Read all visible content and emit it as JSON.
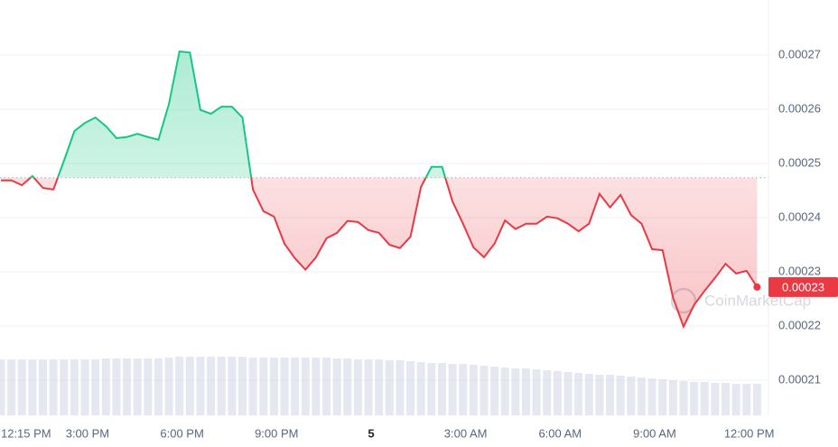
{
  "chart_data": {
    "type": "baseline-line",
    "x": [
      0,
      20,
      40,
      60,
      80,
      100,
      120,
      140,
      160,
      180,
      200,
      220,
      240,
      260,
      280,
      300,
      320,
      340,
      360,
      380,
      400,
      420,
      440,
      460,
      480,
      500,
      520,
      540,
      560,
      580,
      600,
      620,
      640,
      660,
      680,
      700,
      720,
      740,
      760,
      780,
      800,
      820,
      840,
      860,
      880,
      900,
      920,
      940,
      960,
      980,
      1000,
      1020,
      1040,
      1060,
      1080,
      1100,
      1120,
      1140,
      1160,
      1180,
      1200,
      1220,
      1240,
      1260,
      1280,
      1300,
      1320,
      1340,
      1360,
      1380,
      1400,
      1420,
      1440
    ],
    "series": [
      {
        "values": [
          0.0002469,
          0.0002469,
          0.000246,
          0.0002477,
          0.0002455,
          0.0002452,
          0.0002505,
          0.000256,
          0.0002575,
          0.0002585,
          0.0002569,
          0.0002547,
          0.0002549,
          0.0002555,
          0.0002549,
          0.0002544,
          0.000261,
          0.0002707,
          0.0002705,
          0.0002599,
          0.0002592,
          0.0002605,
          0.0002605,
          0.0002585,
          0.0002452,
          0.0002412,
          0.0002402,
          0.0002352,
          0.0002325,
          0.0002304,
          0.0002327,
          0.0002362,
          0.0002372,
          0.0002394,
          0.0002392,
          0.0002377,
          0.0002372,
          0.000235,
          0.0002344,
          0.0002365,
          0.0002457,
          0.0002494,
          0.0002494,
          0.000243,
          0.0002389,
          0.0002345,
          0.0002327,
          0.0002352,
          0.0002395,
          0.0002379,
          0.0002389,
          0.0002389,
          0.0002402,
          0.0002399,
          0.0002389,
          0.0002375,
          0.0002389,
          0.0002444,
          0.0002419,
          0.0002442,
          0.0002405,
          0.0002389,
          0.0002342,
          0.000234,
          0.0002252,
          0.0002199,
          0.0002239,
          0.0002265,
          0.0002289,
          0.0002315,
          0.0002297,
          0.0002302,
          0.0002272
        ],
        "up_color": "#16c784",
        "down_color": "#ea3943"
      }
    ],
    "baseline": 0.0002474,
    "current_label": "0.00023",
    "volume": [
      62,
      62,
      62,
      62,
      62,
      62,
      62,
      62,
      62,
      62,
      63,
      63,
      63,
      63,
      63,
      63,
      64,
      65,
      65,
      65,
      65,
      65,
      65,
      65,
      64,
      64,
      64,
      64,
      64,
      64,
      64,
      64,
      63,
      63,
      62,
      62,
      62,
      61,
      61,
      60,
      59,
      58,
      58,
      57,
      57,
      56,
      55,
      54,
      53,
      52,
      52,
      51,
      50,
      49,
      48,
      47,
      46,
      45,
      45,
      44,
      43,
      42,
      41,
      40,
      39,
      38,
      37,
      37,
      36,
      36,
      35,
      35,
      35
    ],
    "volume_lim": [
      0,
      100
    ],
    "volume_color": "#cfd6e4",
    "xlim": [
      -1.7,
      1460
    ],
    "xticks": [
      {
        "value": 0,
        "label": "12:15 PM"
      },
      {
        "value": 165,
        "label": "3:00 PM"
      },
      {
        "value": 345,
        "label": "6:00 PM"
      },
      {
        "value": 525,
        "label": "9:00 PM"
      },
      {
        "value": 705,
        "label": "5"
      },
      {
        "value": 885,
        "label": "3:00 AM"
      },
      {
        "value": 1065,
        "label": "6:00 AM"
      },
      {
        "value": 1245,
        "label": "9:00 AM"
      },
      {
        "value": 1425,
        "label": "12:00 PM"
      }
    ],
    "ylim": [
      0.0002035,
      0.0002802
    ],
    "yticks": [
      0.00021,
      0.00022,
      0.00023,
      0.00024,
      0.00025,
      0.00026,
      0.00027
    ],
    "grid": true,
    "watermark": "CoinMarketCap"
  }
}
